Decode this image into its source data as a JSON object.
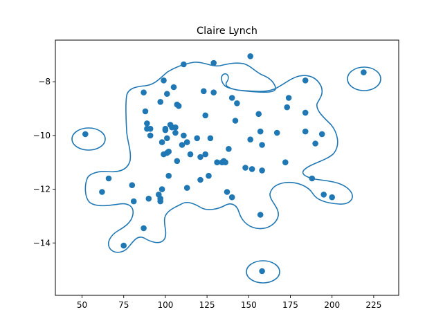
{
  "chart_data": {
    "type": "scatter",
    "title": "Claire Lynch",
    "xlabel": "",
    "ylabel": "",
    "xlim": [
      34,
      240
    ],
    "ylim": [
      -15.95,
      -6.45
    ],
    "x_ticks": [
      50,
      75,
      100,
      125,
      150,
      175,
      200,
      225
    ],
    "y_ticks": [
      -14,
      -12,
      -10,
      -8
    ],
    "grid": false,
    "legend": "none",
    "colors": {
      "points": "#1f77b4",
      "contour": "#1f77b4",
      "axes": "#000000"
    },
    "points": [
      [
        52,
        -9.95
      ],
      [
        62,
        -12.1
      ],
      [
        66,
        -11.6
      ],
      [
        75,
        -14.1
      ],
      [
        80,
        -11.85
      ],
      [
        81,
        -12.45
      ],
      [
        87,
        -8.4
      ],
      [
        87,
        -13.45
      ],
      [
        88,
        -9.1
      ],
      [
        89,
        -9.55
      ],
      [
        89,
        -9.75
      ],
      [
        90,
        -12.35
      ],
      [
        91,
        -10.0
      ],
      [
        91,
        -9.75
      ],
      [
        96,
        -12.2
      ],
      [
        97,
        -12.35
      ],
      [
        97,
        -12.45
      ],
      [
        97,
        -8.75
      ],
      [
        98,
        -12.0
      ],
      [
        98,
        -10.25
      ],
      [
        99,
        -10.7
      ],
      [
        99,
        -7.95
      ],
      [
        100,
        -9.8
      ],
      [
        100,
        -9.75
      ],
      [
        101,
        -10.1
      ],
      [
        101,
        -10.65
      ],
      [
        101,
        -8.45
      ],
      [
        102,
        -11.5
      ],
      [
        102,
        -10.6
      ],
      [
        103,
        -9.6
      ],
      [
        104,
        -9.7
      ],
      [
        105,
        -8.2
      ],
      [
        106,
        -9.7
      ],
      [
        106,
        -9.9
      ],
      [
        107,
        -8.85
      ],
      [
        107,
        -10.95
      ],
      [
        108,
        -8.9
      ],
      [
        110,
        -10.35
      ],
      [
        111,
        -7.35
      ],
      [
        111,
        -10.0
      ],
      [
        113,
        -10.25
      ],
      [
        113,
        -11.95
      ],
      [
        115,
        -10.7
      ],
      [
        119,
        -10.1
      ],
      [
        121,
        -10.8
      ],
      [
        121,
        -11.65
      ],
      [
        123,
        -8.35
      ],
      [
        124,
        -10.7
      ],
      [
        124,
        -9.25
      ],
      [
        126,
        -11.5
      ],
      [
        127,
        -10.1
      ],
      [
        129,
        -7.3
      ],
      [
        129,
        -8.4
      ],
      [
        131,
        -11.0
      ],
      [
        134,
        -11.0
      ],
      [
        135,
        -10.95
      ],
      [
        136,
        -11.0
      ],
      [
        137,
        -12.1
      ],
      [
        138,
        -10.5
      ],
      [
        140,
        -12.3
      ],
      [
        140,
        -8.6
      ],
      [
        142,
        -9.45
      ],
      [
        143,
        -8.8
      ],
      [
        148,
        -11.2
      ],
      [
        151,
        -10.15
      ],
      [
        151,
        -7.05
      ],
      [
        152,
        -11.25
      ],
      [
        156,
        -9.2
      ],
      [
        157,
        -9.85
      ],
      [
        157,
        -12.95
      ],
      [
        158,
        -10.35
      ],
      [
        158,
        -11.3
      ],
      [
        158,
        -15.05
      ],
      [
        167,
        -9.9
      ],
      [
        172,
        -11.0
      ],
      [
        173,
        -8.95
      ],
      [
        174,
        -8.6
      ],
      [
        184,
        -7.95
      ],
      [
        184,
        -9.15
      ],
      [
        184,
        -9.85
      ],
      [
        188,
        -11.6
      ],
      [
        190,
        -10.3
      ],
      [
        194,
        -9.95
      ],
      [
        195,
        -12.2
      ],
      [
        200,
        -12.3
      ],
      [
        219,
        -7.65
      ]
    ]
  }
}
